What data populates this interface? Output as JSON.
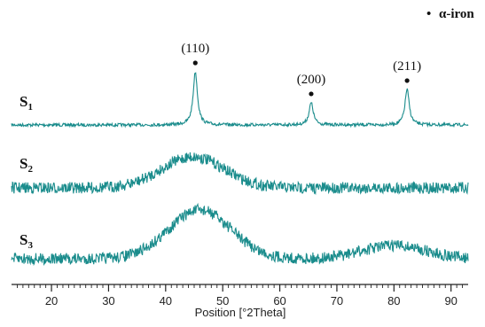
{
  "chart_data": {
    "type": "line",
    "title": "",
    "xlabel": "Position [°2Theta]",
    "ylabel": "",
    "xlim": [
      13,
      93
    ],
    "x_ticks": [
      20,
      30,
      40,
      50,
      60,
      70,
      80,
      90
    ],
    "y_axis_shown": false,
    "grid": false,
    "line_color": "#1a8c8c",
    "legend": {
      "marker": "•",
      "label": "α-iron",
      "placement": "top-right"
    },
    "peak_annotations": [
      {
        "label": "(110)",
        "x": 45.2
      },
      {
        "label": "(200)",
        "x": 65.5
      },
      {
        "label": "(211)",
        "x": 82.3
      }
    ],
    "series": [
      {
        "name_main": "S",
        "name_sub": "1",
        "profile": "sharp",
        "peaks": [
          {
            "x": 45.2,
            "height": 60
          },
          {
            "x": 65.5,
            "height": 25
          },
          {
            "x": 82.3,
            "height": 40
          }
        ]
      },
      {
        "name_main": "S",
        "name_sub": "2",
        "profile": "broad",
        "peaks": [
          {
            "x": 44.8,
            "height": 35
          }
        ]
      },
      {
        "name_main": "S",
        "name_sub": "3",
        "profile": "broad",
        "peaks": [
          {
            "x": 46.0,
            "height": 55
          },
          {
            "x": 80.0,
            "height": 15
          }
        ]
      }
    ]
  }
}
